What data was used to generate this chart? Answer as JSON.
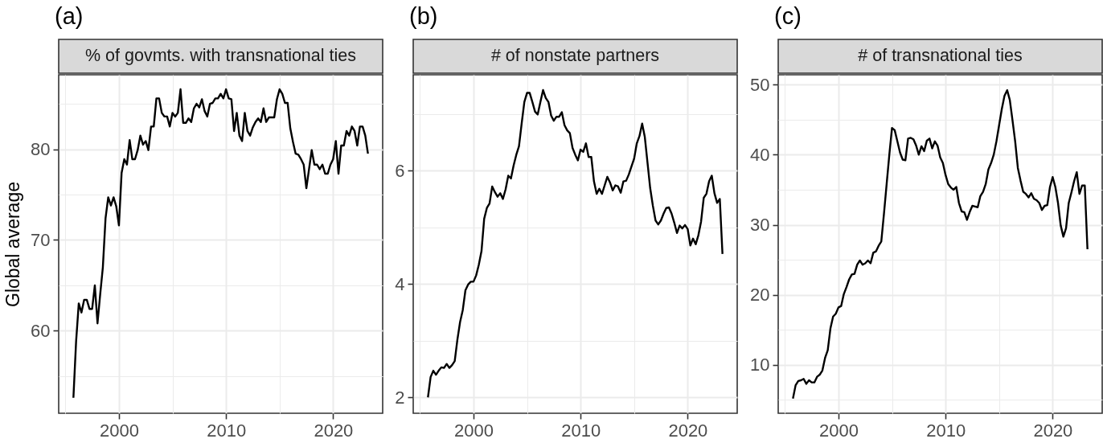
{
  "chart_data": [
    {
      "type": "line",
      "title": "% of govmts. with transnational ties",
      "annotations": [
        "(a)"
      ],
      "ylabel": "Global average",
      "x": [
        1995.75,
        1996,
        1996.25,
        1996.5,
        1996.75,
        1997,
        1997.25,
        1997.5,
        1997.75,
        1998,
        1998.25,
        1998.5,
        1998.75,
        1999,
        1999.25,
        1999.5,
        1999.75,
        2000,
        2000.25,
        2000.5,
        2000.75,
        2001,
        2001.25,
        2001.5,
        2001.75,
        2002,
        2002.25,
        2002.5,
        2002.75,
        2003,
        2003.25,
        2003.5,
        2003.75,
        2004,
        2004.25,
        2004.5,
        2004.75,
        2005,
        2005.25,
        2005.5,
        2005.75,
        2006,
        2006.25,
        2006.5,
        2006.75,
        2007,
        2007.25,
        2007.5,
        2007.75,
        2008,
        2008.25,
        2008.5,
        2008.75,
        2009,
        2009.25,
        2009.5,
        2009.75,
        2010,
        2010.25,
        2010.5,
        2010.75,
        2011,
        2011.25,
        2011.5,
        2011.75,
        2012,
        2012.25,
        2012.5,
        2012.75,
        2013,
        2013.25,
        2013.5,
        2013.75,
        2014,
        2014.25,
        2014.5,
        2014.75,
        2015,
        2015.25,
        2015.5,
        2015.75,
        2016,
        2016.25,
        2016.5,
        2016.75,
        2017,
        2017.25,
        2017.5,
        2017.75,
        2018,
        2018.25,
        2018.5,
        2018.75,
        2019,
        2019.25,
        2019.5,
        2019.75,
        2020,
        2020.25,
        2020.5,
        2020.75,
        2021,
        2021.25,
        2021.5,
        2021.75,
        2022,
        2022.25,
        2022.5,
        2022.75,
        2023,
        2023.25
      ],
      "series": [
        {
          "color": "#000000",
          "values": [
            52.6,
            58.8,
            63.0,
            62.0,
            63.4,
            63.4,
            62.4,
            62.4,
            65.0,
            60.8,
            64.0,
            67.0,
            72.4,
            74.7,
            73.8,
            74.7,
            73.7,
            71.6,
            77.4,
            78.9,
            78.3,
            81.0,
            78.9,
            78.9,
            79.9,
            81.5,
            80.5,
            80.9,
            79.9,
            82.5,
            82.5,
            85.6,
            85.6,
            84.0,
            83.6,
            83.6,
            82.5,
            84.0,
            83.6,
            84.0,
            86.6,
            82.9,
            82.9,
            83.4,
            83.0,
            84.5,
            85.0,
            84.6,
            85.5,
            84.2,
            83.6,
            85.0,
            85.1,
            85.6,
            85.6,
            86.1,
            85.6,
            86.6,
            85.6,
            85.5,
            82.0,
            84.0,
            81.5,
            80.9,
            84.0,
            82.0,
            81.5,
            82.4,
            83.0,
            83.4,
            83.0,
            84.5,
            83.0,
            83.5,
            83.5,
            83.5,
            85.5,
            86.6,
            86.1,
            85.1,
            85.1,
            82.3,
            80.8,
            79.5,
            79.4,
            78.9,
            78.3,
            75.7,
            77.8,
            79.9,
            78.3,
            78.3,
            77.8,
            78.3,
            77.3,
            77.3,
            78.3,
            78.9,
            80.9,
            77.3,
            80.4,
            80.4,
            82.0,
            81.5,
            82.5,
            82.0,
            80.4,
            82.5,
            82.5,
            81.5,
            79.5
          ]
        }
      ],
      "xlim": [
        1994.375,
        2024.625
      ],
      "xticks": [
        {
          "value": 1995,
          "label": null
        },
        2000,
        {
          "value": 2005,
          "label": null
        },
        2010,
        {
          "value": 2015,
          "label": null
        },
        2020
      ],
      "ylim": [
        50.9,
        88.2
      ],
      "yticks": [
        {
          "value": 55,
          "label": null
        },
        60,
        {
          "value": 65,
          "label": null
        },
        70,
        {
          "value": 75,
          "label": null
        },
        80,
        {
          "value": 85,
          "label": null
        }
      ],
      "grid": true
    },
    {
      "type": "line",
      "title": "# of nonstate partners",
      "annotations": [
        "(b)"
      ],
      "x": [
        1995.75,
        1996,
        1996.25,
        1996.5,
        1996.75,
        1997,
        1997.25,
        1997.5,
        1997.75,
        1998,
        1998.25,
        1998.5,
        1998.75,
        1999,
        1999.25,
        1999.5,
        1999.75,
        2000,
        2000.25,
        2000.5,
        2000.75,
        2001,
        2001.25,
        2001.5,
        2001.75,
        2002,
        2002.25,
        2002.5,
        2002.75,
        2003,
        2003.25,
        2003.5,
        2003.75,
        2004,
        2004.25,
        2004.5,
        2004.75,
        2005,
        2005.25,
        2005.5,
        2005.75,
        2006,
        2006.25,
        2006.5,
        2006.75,
        2007,
        2007.25,
        2007.5,
        2007.75,
        2008,
        2008.25,
        2008.5,
        2008.75,
        2009,
        2009.25,
        2009.5,
        2009.75,
        2010,
        2010.25,
        2010.5,
        2010.75,
        2011,
        2011.25,
        2011.5,
        2011.75,
        2012,
        2012.25,
        2012.5,
        2012.75,
        2013,
        2013.25,
        2013.5,
        2013.75,
        2014,
        2014.25,
        2014.5,
        2014.75,
        2015,
        2015.25,
        2015.5,
        2015.75,
        2016,
        2016.25,
        2016.5,
        2016.75,
        2017,
        2017.25,
        2017.5,
        2017.75,
        2018,
        2018.25,
        2018.5,
        2018.75,
        2019,
        2019.25,
        2019.5,
        2019.75,
        2020,
        2020.25,
        2020.5,
        2020.75,
        2021,
        2021.25,
        2021.5,
        2021.75,
        2022,
        2022.25,
        2022.5,
        2022.75,
        2023,
        2023.25
      ],
      "series": [
        {
          "color": "#000000",
          "values": [
            2.0,
            2.36,
            2.47,
            2.4,
            2.47,
            2.53,
            2.52,
            2.59,
            2.52,
            2.57,
            2.64,
            3.02,
            3.33,
            3.54,
            3.89,
            3.99,
            4.04,
            4.04,
            4.15,
            4.34,
            4.58,
            5.15,
            5.34,
            5.42,
            5.72,
            5.62,
            5.54,
            5.6,
            5.5,
            5.67,
            5.91,
            5.86,
            6.09,
            6.28,
            6.43,
            6.83,
            7.21,
            7.37,
            7.37,
            7.21,
            7.04,
            6.99,
            7.21,
            7.42,
            7.28,
            7.21,
            6.97,
            6.88,
            6.95,
            6.95,
            7.03,
            6.8,
            6.71,
            6.66,
            6.4,
            6.28,
            6.18,
            6.37,
            6.33,
            6.48,
            6.24,
            6.24,
            5.81,
            5.59,
            5.68,
            5.59,
            5.74,
            5.89,
            5.79,
            5.65,
            5.74,
            5.72,
            5.61,
            5.81,
            5.82,
            5.93,
            6.07,
            6.21,
            6.48,
            6.61,
            6.83,
            6.59,
            6.14,
            5.69,
            5.38,
            5.12,
            5.05,
            5.12,
            5.24,
            5.34,
            5.35,
            5.24,
            5.08,
            4.9,
            5.03,
            4.98,
            5.04,
            4.97,
            4.68,
            4.8,
            4.7,
            4.86,
            5.1,
            5.52,
            5.59,
            5.81,
            5.91,
            5.6,
            5.43,
            5.5,
            4.53
          ]
        }
      ],
      "xlim": [
        1994.375,
        2024.625
      ],
      "xticks": [
        {
          "value": 1995,
          "label": null
        },
        2000,
        {
          "value": 2005,
          "label": null
        },
        2010,
        {
          "value": 2015,
          "label": null
        },
        2020
      ],
      "ylim": [
        1.72,
        7.69
      ],
      "yticks": [
        2,
        {
          "value": 3,
          "label": null
        },
        4,
        {
          "value": 5,
          "label": null
        },
        6,
        {
          "value": 7,
          "label": null
        }
      ],
      "grid": true
    },
    {
      "type": "line",
      "title": "# of transnational ties",
      "annotations": [
        "(c)"
      ],
      "x": [
        1995.75,
        1996,
        1996.25,
        1996.5,
        1996.75,
        1997,
        1997.25,
        1997.5,
        1997.75,
        1998,
        1998.25,
        1998.5,
        1998.75,
        1999,
        1999.25,
        1999.5,
        1999.75,
        2000,
        2000.25,
        2000.5,
        2000.75,
        2001,
        2001.25,
        2001.5,
        2001.75,
        2002,
        2002.25,
        2002.5,
        2002.75,
        2003,
        2003.25,
        2003.5,
        2003.75,
        2004,
        2004.25,
        2004.5,
        2004.75,
        2005,
        2005.25,
        2005.5,
        2005.75,
        2006,
        2006.25,
        2006.5,
        2006.75,
        2007,
        2007.25,
        2007.5,
        2007.75,
        2008,
        2008.25,
        2008.5,
        2008.75,
        2009,
        2009.25,
        2009.5,
        2009.75,
        2010,
        2010.25,
        2010.5,
        2010.75,
        2011,
        2011.25,
        2011.5,
        2011.75,
        2012,
        2012.25,
        2012.5,
        2012.75,
        2013,
        2013.25,
        2013.5,
        2013.75,
        2014,
        2014.25,
        2014.5,
        2014.75,
        2015,
        2015.25,
        2015.5,
        2015.75,
        2016,
        2016.25,
        2016.5,
        2016.75,
        2017,
        2017.25,
        2017.5,
        2017.75,
        2018,
        2018.25,
        2018.5,
        2018.75,
        2019,
        2019.25,
        2019.5,
        2019.75,
        2020,
        2020.25,
        2020.5,
        2020.75,
        2021,
        2021.25,
        2021.5,
        2021.75,
        2022,
        2022.25,
        2022.5,
        2022.75,
        2023,
        2023.25
      ],
      "series": [
        {
          "color": "#000000",
          "values": [
            5.2,
            7.1,
            7.7,
            7.8,
            8.0,
            7.3,
            7.8,
            7.5,
            7.5,
            8.3,
            8.6,
            9.2,
            11.0,
            12.1,
            15.2,
            16.9,
            17.3,
            18.2,
            18.4,
            20.1,
            21.1,
            22.2,
            22.9,
            23.0,
            24.3,
            24.9,
            24.3,
            24.5,
            24.9,
            24.5,
            26.0,
            26.2,
            27.0,
            27.6,
            31.6,
            35.8,
            40.0,
            43.8,
            43.5,
            41.9,
            40.3,
            39.3,
            39.2,
            42.3,
            42.4,
            42.2,
            41.3,
            40.0,
            41.2,
            40.5,
            42.0,
            42.3,
            40.9,
            41.9,
            41.3,
            39.6,
            38.8,
            37.1,
            35.8,
            35.3,
            35.0,
            35.4,
            33.1,
            31.9,
            31.8,
            30.7,
            31.8,
            32.7,
            32.6,
            32.5,
            34.1,
            34.7,
            35.8,
            37.9,
            38.8,
            40.0,
            41.9,
            44.2,
            46.5,
            48.4,
            49.2,
            47.8,
            44.9,
            41.9,
            38.1,
            36.3,
            34.7,
            34.4,
            33.9,
            34.5,
            33.7,
            33.5,
            33.1,
            32.1,
            32.7,
            32.8,
            35.4,
            36.8,
            35.4,
            33.1,
            29.9,
            28.3,
            29.5,
            33.1,
            34.6,
            36.2,
            37.5,
            34.4,
            35.6,
            35.6,
            26.5
          ]
        }
      ],
      "xlim": [
        1994.375,
        2024.625
      ],
      "xticks": [
        {
          "value": 1995,
          "label": null
        },
        2000,
        {
          "value": 2005,
          "label": null
        },
        2010,
        {
          "value": 2015,
          "label": null
        },
        2020
      ],
      "ylim": [
        3.1,
        51.4
      ],
      "yticks": [
        {
          "value": 5,
          "label": null
        },
        10,
        {
          "value": 15,
          "label": null
        },
        20,
        {
          "value": 25,
          "label": null
        },
        30,
        {
          "value": 35,
          "label": null
        },
        40,
        {
          "value": 45,
          "label": null
        },
        50
      ],
      "grid": true
    }
  ]
}
